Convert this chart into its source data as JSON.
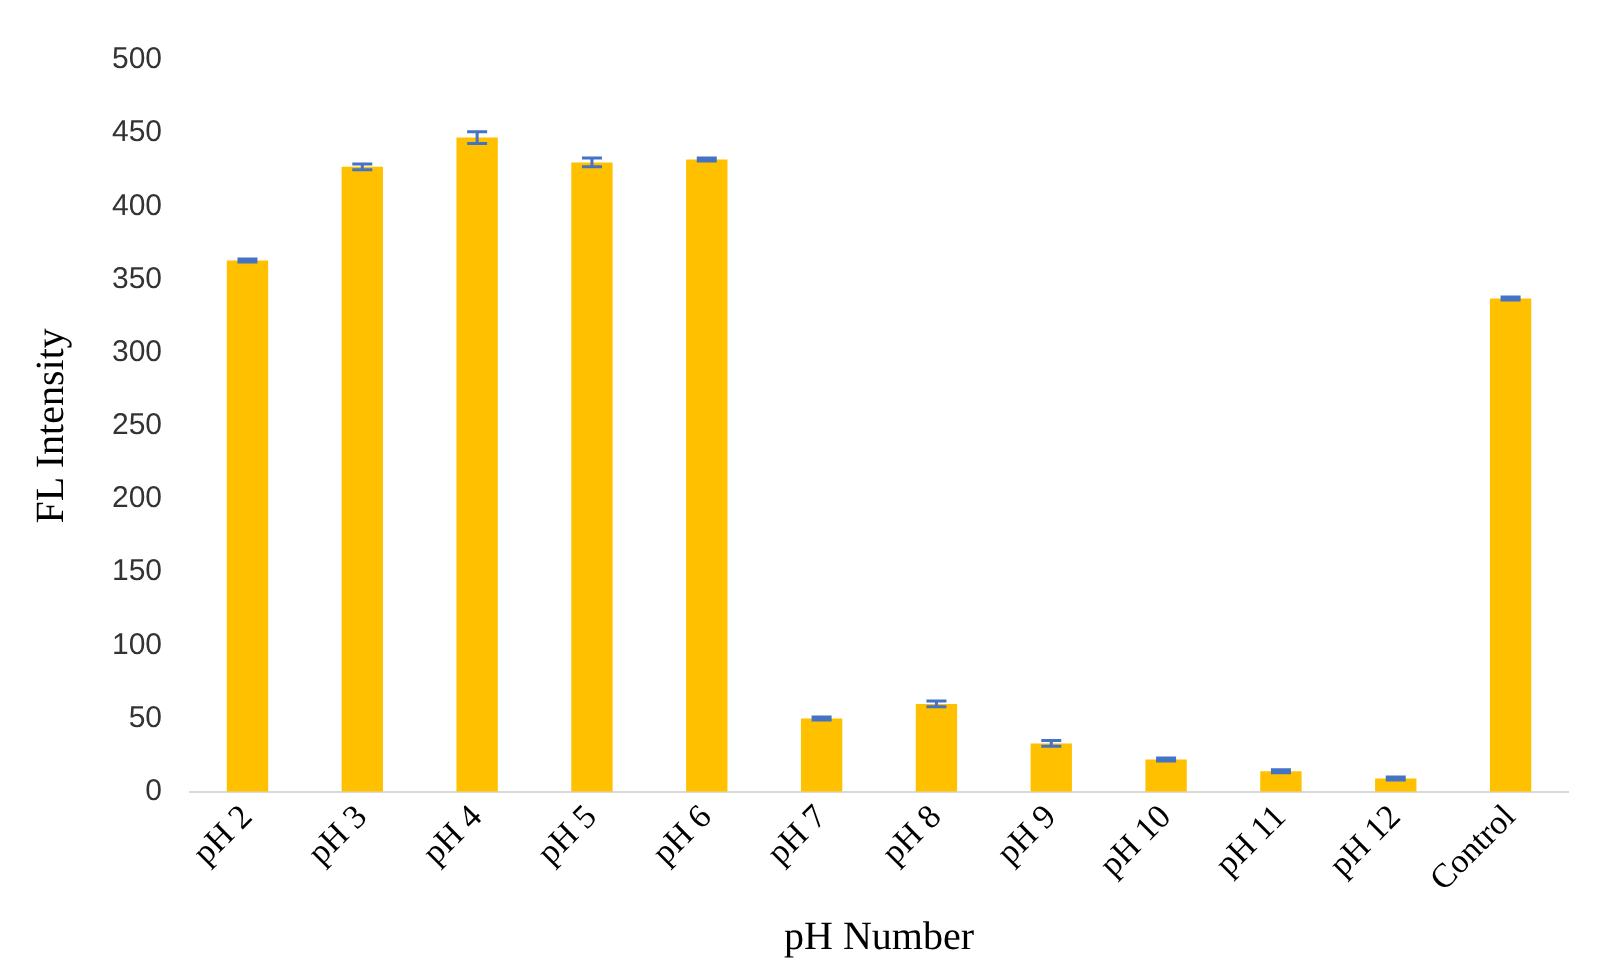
{
  "chart_data": {
    "type": "bar",
    "xlabel": "pH Number",
    "ylabel": "FL Intensity",
    "categories": [
      "pH 2",
      "pH 3",
      "pH 4",
      "pH 5",
      "pH 6",
      "pH 7",
      "pH 8",
      "pH 9",
      "pH 10",
      "pH 11",
      "pH 12",
      "Control"
    ],
    "values": [
      363,
      427,
      447,
      430,
      432,
      50,
      60,
      33,
      22,
      14,
      9,
      337
    ],
    "errors": [
      1,
      2,
      4,
      3,
      1,
      1,
      2,
      2,
      1,
      1,
      1,
      1
    ],
    "color": "#ffc000",
    "ylim": [
      0,
      500
    ],
    "yticks": [
      0,
      50,
      100,
      150,
      200,
      250,
      300,
      350,
      400,
      450,
      500
    ],
    "grid": false,
    "legend": false
  }
}
